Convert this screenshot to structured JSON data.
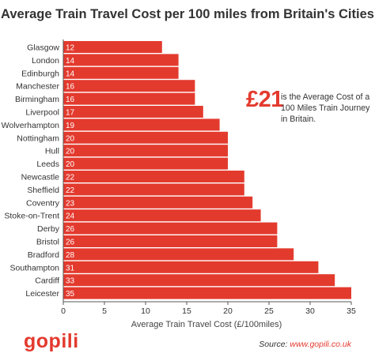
{
  "chart_data": {
    "type": "bar",
    "orientation": "horizontal",
    "title": "Average Train Travel Cost per 100 miles from Britain's Cities",
    "xlabel": "Average Train Travel Cost (£/100miles)",
    "ylabel": "",
    "xlim": [
      0,
      35
    ],
    "xticks": [
      0,
      5,
      10,
      15,
      20,
      25,
      30,
      35
    ],
    "categories": [
      "Glasgow",
      "London",
      "Edinburgh",
      "Manchester",
      "Birmingham",
      "Liverpool",
      "Wolverhampton",
      "Nottingham",
      "Hull",
      "Leeds",
      "Newcastle",
      "Sheffield",
      "Coventry",
      "Stoke-on-Trent",
      "Derby",
      "Bristol",
      "Bradford",
      "Southampton",
      "Cardiff",
      "Leicester"
    ],
    "values": [
      12,
      14,
      14,
      16,
      16,
      17,
      19,
      20,
      20,
      20,
      22,
      22,
      23,
      24,
      26,
      26,
      28,
      31,
      33,
      35
    ],
    "bar_color": "#e33a2e",
    "grid": false
  },
  "callout": {
    "value": "£21",
    "text": "is the Average Cost of a 100 Miles Train Journey in Britain."
  },
  "logo": {
    "text": "gopili"
  },
  "source": {
    "label": "Source:",
    "url": "www.gopili.co.uk"
  }
}
